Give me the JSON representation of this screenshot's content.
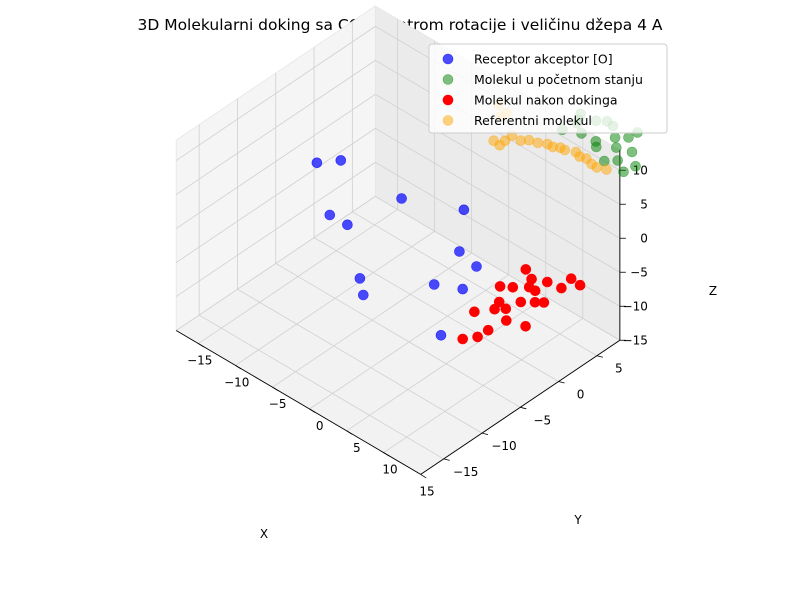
{
  "chart_data": {
    "type": "scatter",
    "projection": "3d",
    "title": "3D Molekularni doking sa COM centrom rotacije i veličinu džepa 4 A",
    "xlabel": "X",
    "ylabel": "Y",
    "zlabel": "Z",
    "xlim": [
      -18,
      15
    ],
    "ylim": [
      -18,
      8
    ],
    "zlim": [
      -15,
      13
    ],
    "x_ticks": [
      -15,
      -10,
      -5,
      0,
      5,
      10,
      15
    ],
    "y_ticks": [
      -15,
      -10,
      -5,
      0,
      5
    ],
    "z_ticks": [
      -15,
      -10,
      -5,
      0,
      5,
      10
    ],
    "x_tick_labels": [
      "−15",
      "−10",
      "−5",
      "0",
      "5",
      "10",
      "15"
    ],
    "y_tick_labels": [
      "−15",
      "−10",
      "−5",
      "0",
      "5"
    ],
    "z_tick_labels": [
      "−15",
      "−10",
      "−5",
      "0",
      "5",
      "10"
    ],
    "grid": true,
    "legend_position": "top-right",
    "series": [
      {
        "name": "Receptor akceptor [O]",
        "color": "#0000ff",
        "alpha": 0.7,
        "points": [
          [
            -17.0,
            -0.6,
            -2.9
          ],
          [
            -14.8,
            0.4,
            -1.9
          ],
          [
            -13.4,
            -2.4,
            -6.9
          ],
          [
            -10.5,
            -2.9,
            -6.1
          ],
          [
            -9.7,
            3.4,
            -6.5
          ],
          [
            -8.3,
            -3.4,
            -12.2
          ],
          [
            -6.5,
            -4.7,
            -12.5
          ],
          [
            -4.8,
            6.8,
            -7.6
          ],
          [
            -2.3,
            0.5,
            -12.2
          ],
          [
            -1.9,
            3.4,
            -9.3
          ],
          [
            0.1,
            1.9,
            -12.4
          ],
          [
            0.2,
            3.6,
            -10.3
          ],
          [
            1.3,
            -2.1,
            -15.4
          ]
        ]
      },
      {
        "name": "Molekul u početnom stanju",
        "color": "#008000",
        "alpha": 0.5,
        "points": [
          [
            2.6,
            12.5,
            4.6
          ],
          [
            3.9,
            13.2,
            5.8
          ],
          [
            3.6,
            13.9,
            6.5
          ],
          [
            4.4,
            12.9,
            6.9
          ],
          [
            6.1,
            13.5,
            7.4
          ],
          [
            5.9,
            11.8,
            6.7
          ],
          [
            7.2,
            12.4,
            5.9
          ],
          [
            8.2,
            11.5,
            6.4
          ],
          [
            7.7,
            13.4,
            8.4
          ],
          [
            9.7,
            11.1,
            5.6
          ],
          [
            9.5,
            12.7,
            7.7
          ],
          [
            11.4,
            11.2,
            6.7
          ],
          [
            11.1,
            12.9,
            8.6
          ],
          [
            11.8,
            13.4,
            9.4
          ],
          [
            12.4,
            12.1,
            7.9
          ],
          [
            13.6,
            11.4,
            7.1
          ],
          [
            12.6,
            10.8,
            6.1
          ],
          [
            10.8,
            11.6,
            7.9
          ],
          [
            8.9,
            13.0,
            8.8
          ]
        ]
      },
      {
        "name": "Molekul nakon dokinga",
        "color": "#ff0000",
        "alpha": 1.0,
        "points": [
          [
            3.4,
            -1.3,
            -15.2
          ],
          [
            2.5,
            1.1,
            -13.6
          ],
          [
            4.4,
            1.9,
            -12.6
          ],
          [
            5.6,
            -0.1,
            -13.4
          ],
          [
            4.9,
            -0.8,
            -14.3
          ],
          [
            6.6,
            1.3,
            -12.4
          ],
          [
            6.9,
            2.9,
            -10.7
          ],
          [
            7.0,
            3.9,
            -9.2
          ],
          [
            7.4,
            4.3,
            -9.8
          ],
          [
            8.1,
            3.6,
            -10.5
          ],
          [
            9.2,
            3.7,
            -9.9
          ],
          [
            8.2,
            5.1,
            -8.6
          ],
          [
            9.8,
            5.4,
            -8.7
          ],
          [
            10.3,
            6.2,
            -7.6
          ],
          [
            11.7,
            6.0,
            -7.5
          ],
          [
            3.6,
            3.4,
            -10.9
          ],
          [
            4.4,
            2.5,
            -12.0
          ],
          [
            4.9,
            3.8,
            -10.5
          ],
          [
            6.4,
            4.8,
            -9.1
          ],
          [
            5.3,
            5.1,
            -8.6
          ],
          [
            8.9,
            1.6,
            -12.0
          ],
          [
            5.6,
            2.2,
            -12.0
          ]
        ]
      },
      {
        "name": "Referentni molekul",
        "color": "#ffa500",
        "alpha": 0.5,
        "points": [
          [
            -5.1,
            11.6,
            4.0
          ],
          [
            -4.5,
            11.3,
            2.9
          ],
          [
            -4.1,
            11.7,
            3.4
          ],
          [
            -3.6,
            10.3,
            0.0
          ],
          [
            -3.4,
            10.8,
            0.4
          ],
          [
            -3.1,
            11.4,
            0.9
          ],
          [
            -2.0,
            11.5,
            0.8
          ],
          [
            -1.3,
            11.9,
            1.0
          ],
          [
            -0.3,
            12.1,
            1.1
          ],
          [
            0.6,
            12.5,
            1.2
          ],
          [
            1.2,
            12.6,
            1.1
          ],
          [
            1.9,
            12.9,
            1.2
          ],
          [
            2.4,
            13.0,
            1.1
          ],
          [
            3.5,
            13.4,
            1.2
          ],
          [
            4.1,
            13.3,
            1.0
          ],
          [
            4.8,
            13.5,
            1.0
          ],
          [
            5.6,
            13.4,
            0.8
          ],
          [
            6.2,
            13.5,
            0.6
          ],
          [
            7.2,
            13.8,
            0.7
          ],
          [
            -4.3,
            10.2,
            0.3
          ]
        ]
      }
    ]
  }
}
